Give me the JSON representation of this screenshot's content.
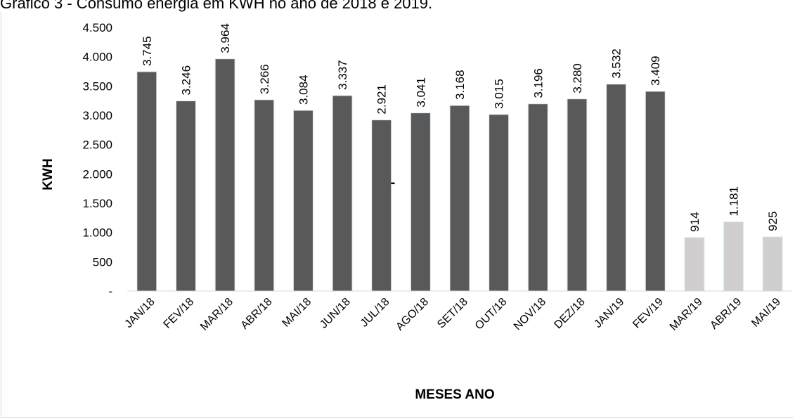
{
  "caption": "Gráfico 3 - Consumo energia em KWH no ano de 2018 e 2019.",
  "chart_data": {
    "type": "bar",
    "title": "",
    "xlabel": "MESES ANO",
    "ylabel": "KWH",
    "ylim": [
      0,
      4500
    ],
    "yticks": [
      0,
      500,
      1000,
      1500,
      2000,
      2500,
      3000,
      3500,
      4000,
      4500
    ],
    "ytick_labels": [
      "-",
      "500",
      "1.000",
      "1.500",
      "2.000",
      "2.500",
      "3.000",
      "3.500",
      "4.000",
      "4.500"
    ],
    "grid": false,
    "legend": "none",
    "categories": [
      "JAN/18",
      "FEV/18",
      "MAR/18",
      "ABR/18",
      "MAI/18",
      "JUN/18",
      "JUL/18",
      "AGO/18",
      "SET/18",
      "OUT/18",
      "NOV/18",
      "DEZ/18",
      "JAN/19",
      "FEV/19",
      "MAR/19",
      "ABR/19",
      "MAI/19"
    ],
    "series": [
      {
        "values": [
          3745,
          3246,
          3964,
          3266,
          3084,
          3337,
          2921,
          3041,
          3168,
          3015,
          3196,
          3280,
          3532,
          3409,
          null,
          null,
          null
        ],
        "labels": [
          "3.745",
          "3.246",
          "3.964",
          "3.266",
          "3.084",
          "3.337",
          "2.921",
          "3.041",
          "3.168",
          "3.015",
          "3.196",
          "3.280",
          "3.532",
          "3.409",
          "",
          "",
          ""
        ],
        "color": "#595959"
      },
      {
        "values": [
          null,
          null,
          null,
          null,
          null,
          null,
          null,
          null,
          null,
          null,
          null,
          null,
          null,
          null,
          914,
          1181,
          925
        ],
        "labels": [
          "",
          "",
          "",
          "",
          "",
          "",
          "",
          "",
          "",
          "",
          "",
          "",
          "",
          "",
          "914",
          "1.181",
          "925"
        ],
        "color": "#d0cece"
      }
    ],
    "annotations": [
      "-"
    ]
  }
}
